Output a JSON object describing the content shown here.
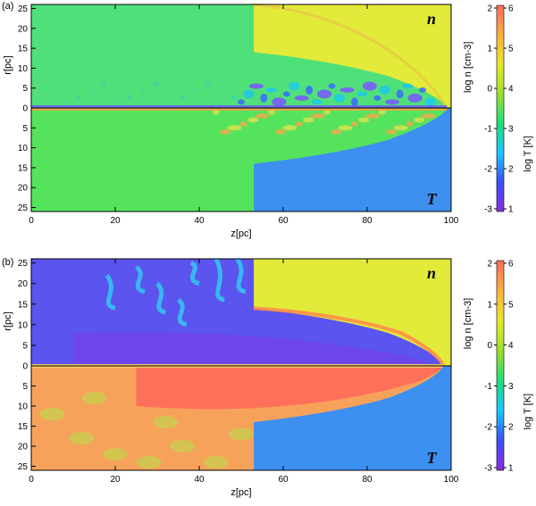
{
  "chart_data": [
    {
      "type": "heatmap",
      "panel_label": "(a)",
      "xlabel": "z[pc]",
      "ylabel": "r[pc]",
      "xlim": [
        0,
        100
      ],
      "ylim_top": [
        0,
        26
      ],
      "ylim_bottom": [
        0,
        26
      ],
      "x_ticks": [
        "0",
        "20",
        "40",
        "60",
        "80",
        "100"
      ],
      "y_ticks_top": [
        "25",
        "20",
        "15",
        "10",
        "5",
        "0"
      ],
      "y_ticks_bottom": [
        "5",
        "10",
        "15",
        "20",
        "25"
      ],
      "top_half_variable": "n",
      "bottom_half_variable": "T",
      "shock_front_z": 53,
      "bow_tip_z": 99,
      "colorbar": {
        "left_ticks": [
          "2",
          "1",
          "0",
          "-1",
          "-2",
          "-3"
        ],
        "right_ticks": [
          "6",
          "5",
          "4",
          "3",
          "2",
          "1"
        ],
        "left_label": "log n [cm-3]",
        "right_label": "log T [K]"
      }
    },
    {
      "type": "heatmap",
      "panel_label": "(b)",
      "xlabel": "z[pc]",
      "ylabel": "r[pc]",
      "xlim": [
        0,
        100
      ],
      "ylim_top": [
        0,
        26
      ],
      "ylim_bottom": [
        0,
        26
      ],
      "x_ticks": [
        "0",
        "20",
        "40",
        "60",
        "80",
        "100"
      ],
      "y_ticks_top": [
        "25",
        "20",
        "15",
        "10",
        "5",
        "0"
      ],
      "y_ticks_bottom": [
        "5",
        "10",
        "15",
        "20",
        "25"
      ],
      "top_half_variable": "n",
      "bottom_half_variable": "T",
      "shock_front_z": 53,
      "bow_tip_z": 98,
      "colorbar": {
        "left_ticks": [
          "2",
          "1",
          "0",
          "-1",
          "-2",
          "-3"
        ],
        "right_ticks": [
          "6",
          "5",
          "4",
          "3",
          "2",
          "1"
        ],
        "left_label": "log n [cm-3]",
        "right_label": "log T [K]"
      }
    }
  ],
  "colormap": [
    "#8a2be2",
    "#3a4fff",
    "#19c8ff",
    "#22dd77",
    "#9be22a",
    "#e8e82a",
    "#ffae40",
    "#ff6a5a"
  ],
  "region_colors": {
    "ambient_density": "#e2ea3a",
    "ambient_temperature": "#3d8ff0",
    "jet_density_a": "#4fe07a",
    "jet_temperature_a": "#55e35e",
    "jet_density_b": "#5b54ef",
    "jet_temperature_b": "#f7a25a",
    "hot_core_b": "#ff6a5a"
  }
}
